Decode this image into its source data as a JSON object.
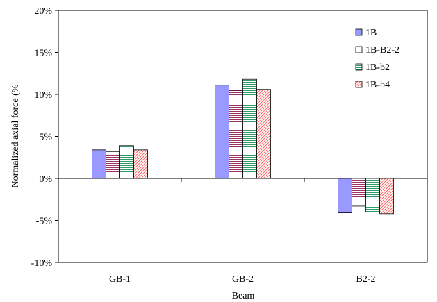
{
  "chart_data": {
    "type": "bar",
    "title": "",
    "xlabel": "Beam",
    "ylabel": "Normalized axial force (%",
    "categories": [
      "GB-1",
      "GB-2",
      "B2-2"
    ],
    "ylim": [
      -10,
      20
    ],
    "yticks": [
      -10,
      -5,
      0,
      5,
      10,
      15,
      20
    ],
    "ytick_labels": [
      "-10%",
      "-5%",
      "0%",
      "5%",
      "10%",
      "15%",
      "20%"
    ],
    "grid": false,
    "legend_position": "top-right",
    "series": [
      {
        "name": "1B",
        "values": [
          3.4,
          11.1,
          -4.1
        ],
        "color": "#9999ff",
        "pattern": "solid"
      },
      {
        "name": "1B-B2-2",
        "values": [
          3.2,
          10.5,
          -3.3
        ],
        "color": "#993366",
        "pattern": "horizontal-lines"
      },
      {
        "name": "1B-b2",
        "values": [
          3.9,
          11.8,
          -4.0
        ],
        "color": "#339966",
        "pattern": "horizontal-lines"
      },
      {
        "name": "1B-b4",
        "values": [
          3.4,
          10.6,
          -4.2
        ],
        "color": "#ff6666",
        "pattern": "diagonal-lines"
      }
    ]
  }
}
